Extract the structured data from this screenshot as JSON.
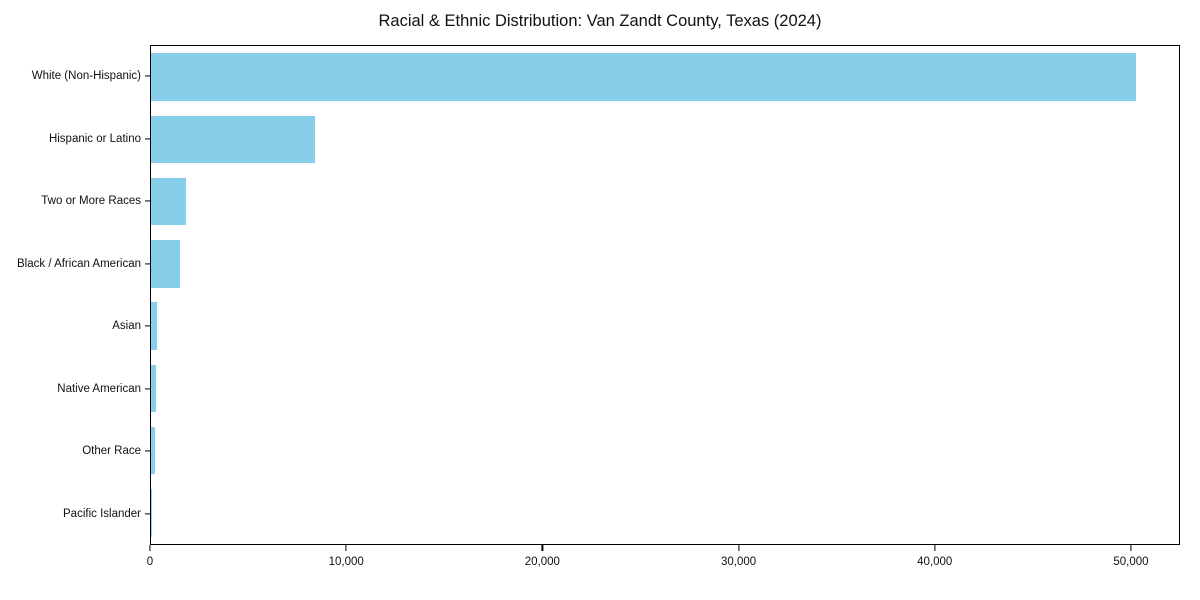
{
  "chart_data": {
    "type": "bar",
    "orientation": "horizontal",
    "title": "Racial & Ethnic Distribution: Van Zandt County, Texas (2024)",
    "categories": [
      "White (Non-Hispanic)",
      "Hispanic or Latino",
      "Two or More Races",
      "Black / African American",
      "Asian",
      "Native American",
      "Other Race",
      "Pacific Islander"
    ],
    "values": [
      50300,
      8400,
      1800,
      1500,
      320,
      280,
      200,
      30
    ],
    "bar_color": "#87CEEB",
    "xlabel": "",
    "ylabel": "",
    "xlim": [
      0,
      52500
    ],
    "x_ticks": [
      {
        "value": 0,
        "label": "0"
      },
      {
        "value": 10000,
        "label": "10,000"
      },
      {
        "value": 20000,
        "label": "20,000"
      },
      {
        "value": 30000,
        "label": "30,000"
      },
      {
        "value": 40000,
        "label": "40,000"
      },
      {
        "value": 50000,
        "label": "50,000"
      }
    ],
    "grid": false,
    "legend": null
  }
}
